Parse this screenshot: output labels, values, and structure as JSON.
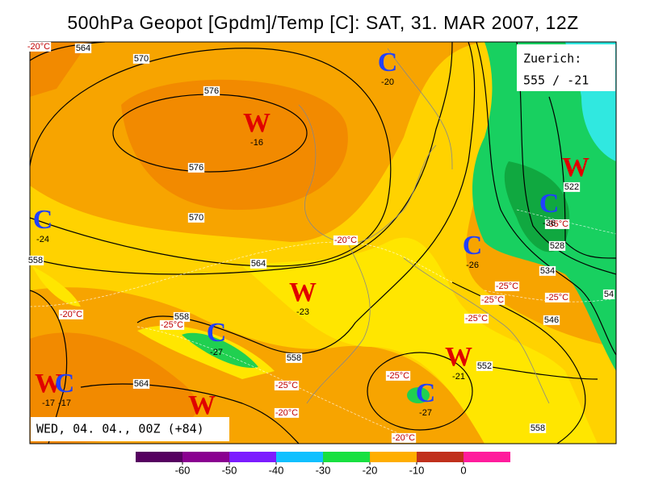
{
  "title": "500hPa Geopot [Gpdm]/Temp [C]: SAT, 31. MAR 2007, 12Z",
  "station": {
    "name": "Zuerich:",
    "value": "555 / -21"
  },
  "valid_time": "WED, 04. 04., 00Z (+84)",
  "colorbar": {
    "xlim": [
      -70,
      10
    ],
    "ticks": [
      -60,
      -50,
      -40,
      -30,
      -20,
      -10,
      0
    ],
    "colors": [
      "#560060",
      "#8a0090",
      "#7c1cff",
      "#10c0ff",
      "#18e040",
      "#ffae00",
      "#c0301c",
      "#ff1c9c"
    ]
  },
  "contour_labels": [
    564,
    570,
    576,
    576,
    570,
    564,
    558,
    558,
    558,
    564,
    552,
    558,
    522,
    528,
    534,
    546,
    54
  ],
  "temp_labels": [
    "-20°C",
    "-20°C",
    "-20°C",
    "-25°C",
    "-25°C",
    "-20°C",
    "-25°C",
    "-20°C",
    "-25°C",
    "-25°C",
    "-25°C",
    "-25°C",
    "-35°C"
  ],
  "centers": [
    {
      "label": "W",
      "value": -16
    },
    {
      "label": "C",
      "value": -20
    },
    {
      "label": "C",
      "value": -24
    },
    {
      "label": "W",
      "value": -23
    },
    {
      "label": "C",
      "value": -27
    },
    {
      "label": "C",
      "value": -26
    },
    {
      "label": "W",
      "value": -21
    },
    {
      "label": "C",
      "value": -27
    },
    {
      "label": "W"
    },
    {
      "label": "C",
      "value": -36
    },
    {
      "label": "W",
      "value": -17
    },
    {
      "label": "C",
      "value": -17
    },
    {
      "label": "W"
    }
  ]
}
